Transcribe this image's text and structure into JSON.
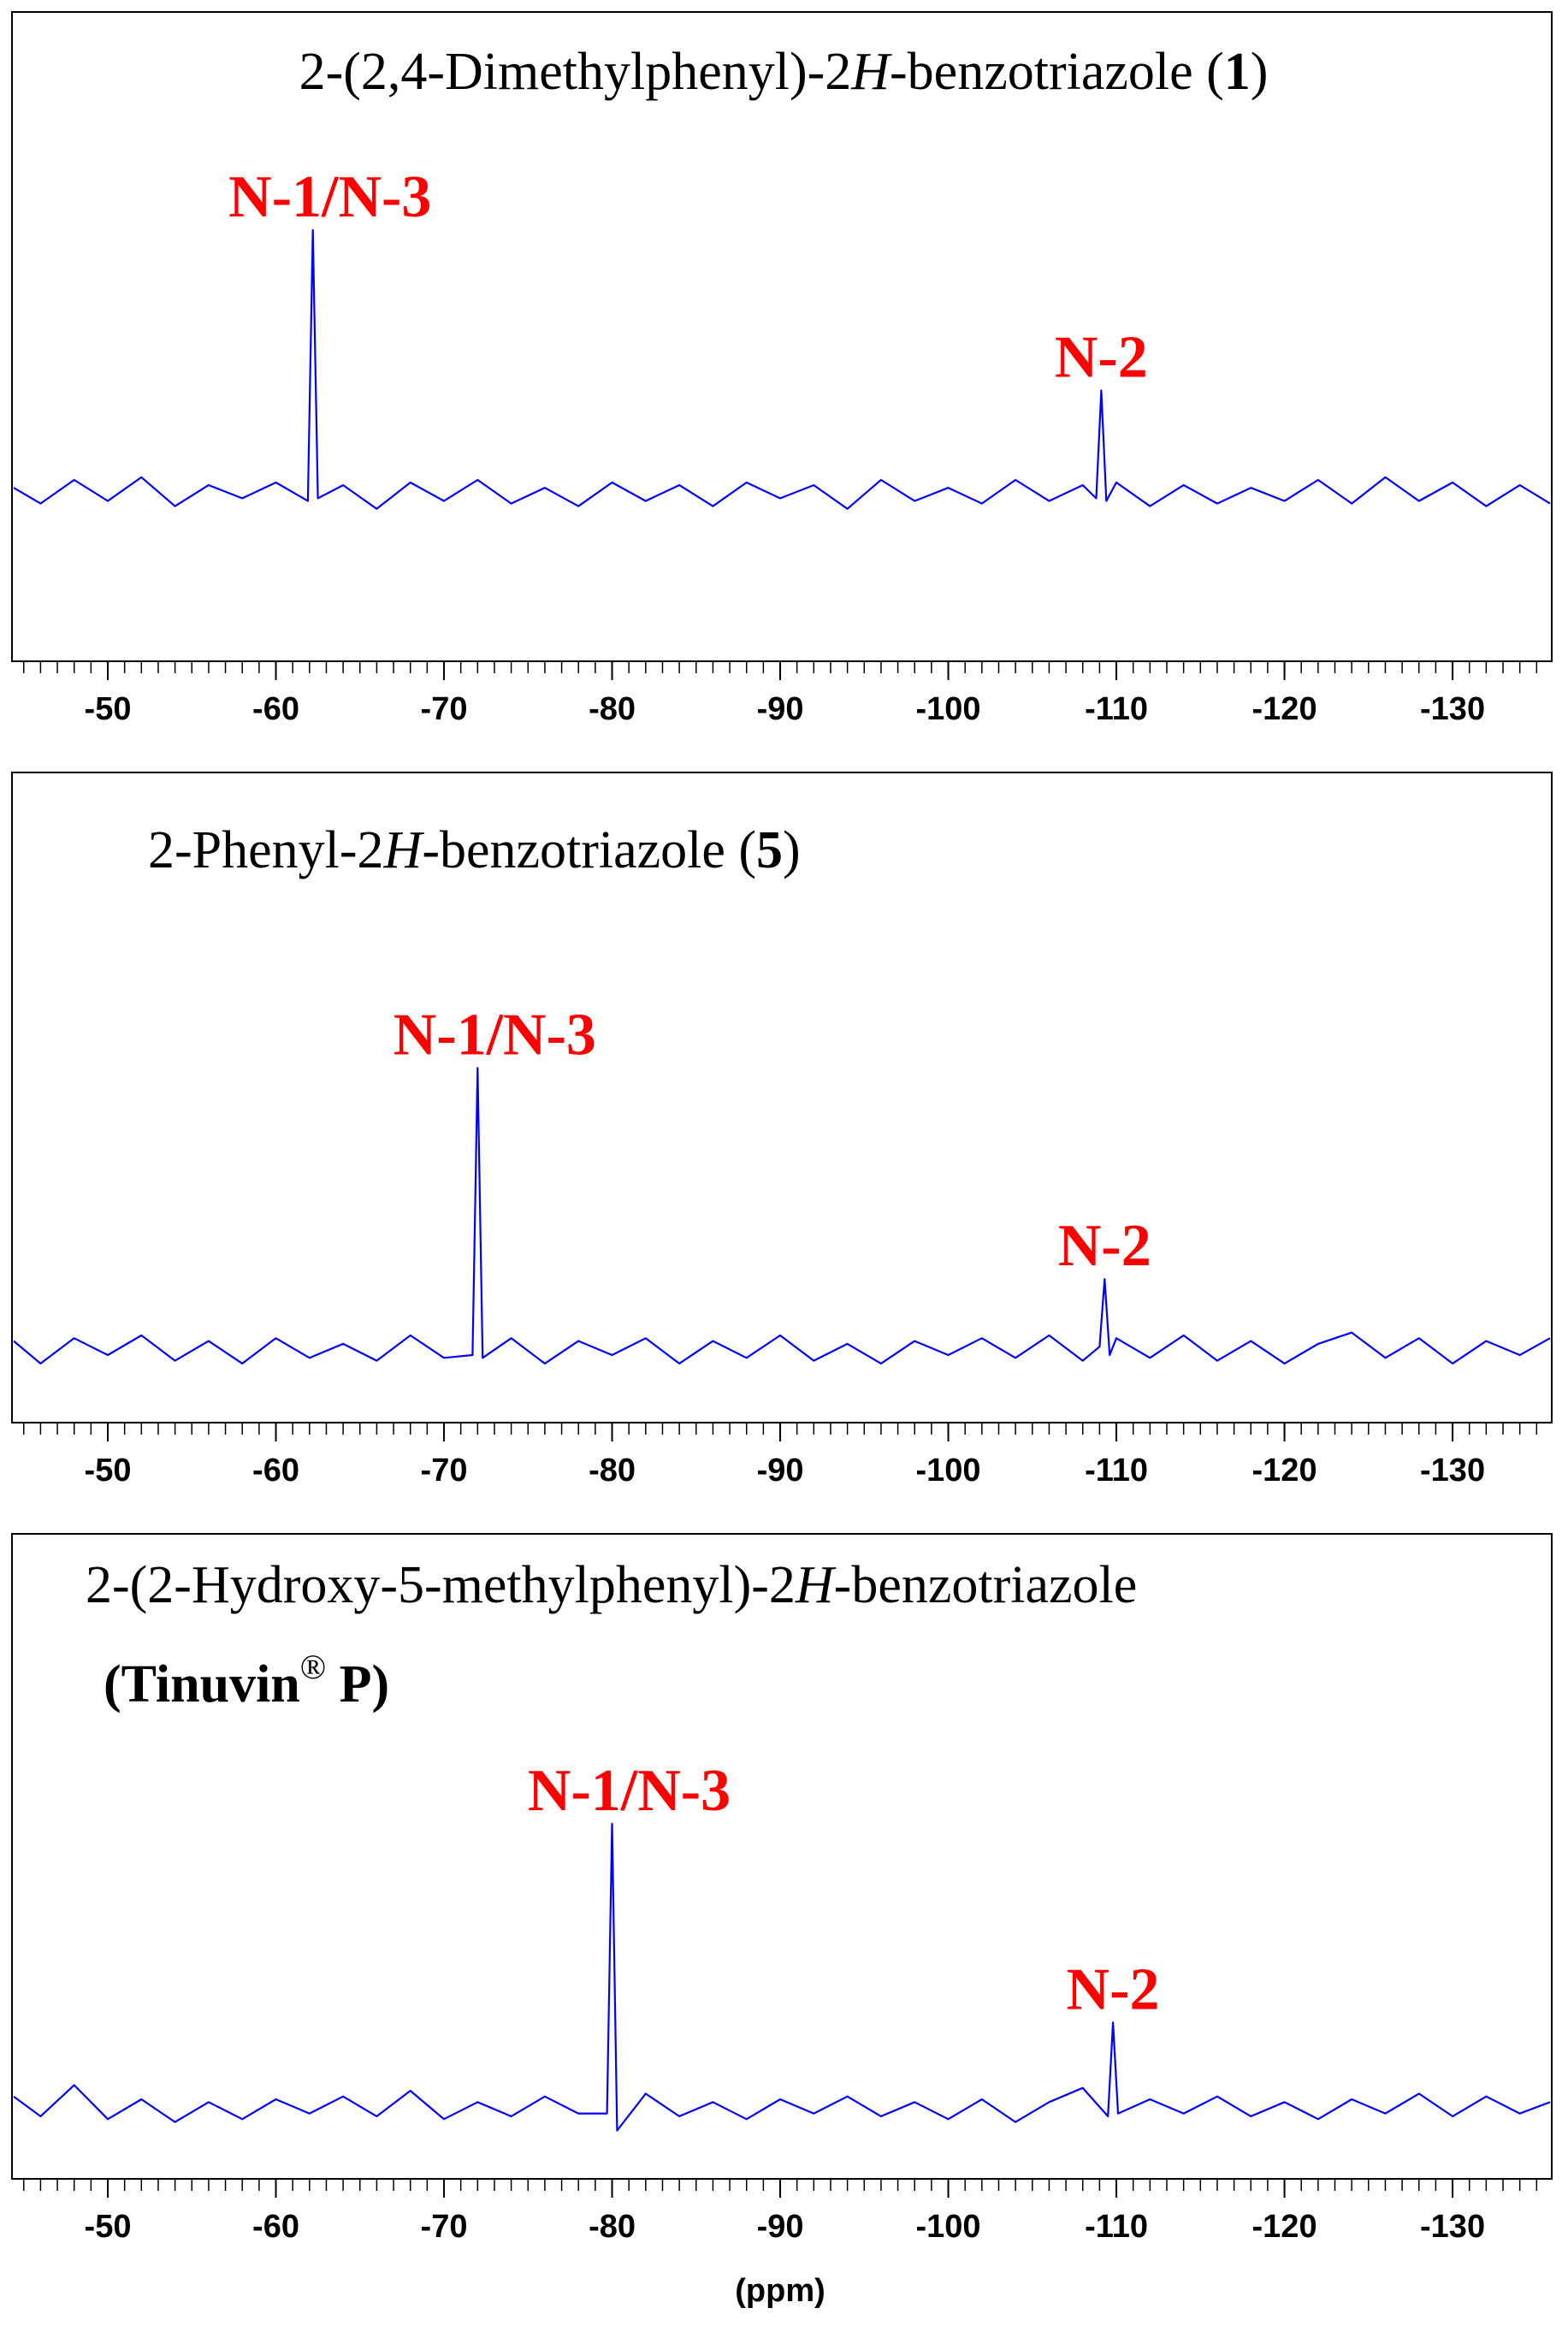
{
  "chart_data": [
    {
      "type": "line",
      "title": [
        {
          "text": "2-(2,4-Dimethylphenyl)-2"
        },
        {
          "text": "H",
          "italic": true
        },
        {
          "text": "-benzotriazole ("
        },
        {
          "text": "1",
          "bold": true
        },
        {
          "text": ")"
        }
      ],
      "x": [
        -44.4,
        -46,
        -48,
        -50,
        -52,
        -54,
        -56,
        -58,
        -60,
        -61.9,
        -62.2,
        -62.5,
        -64,
        -66,
        -68,
        -70,
        -72,
        -74,
        -76,
        -78,
        -80,
        -82,
        -84,
        -86,
        -88,
        -90,
        -92,
        -94,
        -96,
        -98,
        -100,
        -102,
        -104,
        -106,
        -108,
        -108.8,
        -109.1,
        -109.4,
        -110,
        -112,
        -114,
        -116,
        -118,
        -120,
        -122,
        -124,
        -126,
        -128,
        -130,
        -132,
        -134,
        -135.8
      ],
      "values": [
        0.2,
        -0.4,
        0.5,
        -0.3,
        0.6,
        -0.5,
        0.3,
        -0.2,
        0.4,
        -0.3,
        10,
        -0.2,
        0.3,
        -0.6,
        0.4,
        -0.3,
        0.5,
        -0.4,
        0.2,
        -0.5,
        0.4,
        -0.3,
        0.3,
        -0.5,
        0.4,
        -0.2,
        0.3,
        -0.6,
        0.5,
        -0.3,
        0.2,
        -0.4,
        0.5,
        -0.3,
        0.3,
        -0.2,
        3.9,
        -0.3,
        0.4,
        -0.5,
        0.3,
        -0.4,
        0.2,
        -0.3,
        0.5,
        -0.4,
        0.6,
        -0.3,
        0.4,
        -0.5,
        0.3,
        -0.4
      ],
      "color": "#0000ff",
      "annotations": [
        {
          "text": "N-1/N-3",
          "x": -62.2,
          "y": 10
        },
        {
          "text": "N-2",
          "x": -109.1,
          "y": 3.9
        }
      ],
      "annotation_color": "#ff0000",
      "xlim": [
        -44.3,
        -135.9
      ],
      "ylim": [
        -6.4,
        18.3
      ],
      "xticks": [
        -50,
        -60,
        -70,
        -80,
        -90,
        -100,
        -110,
        -120,
        -130
      ],
      "xminor_step": 1
    },
    {
      "type": "line",
      "title": [
        {
          "text": "2-Phenyl-2"
        },
        {
          "text": "H",
          "italic": true
        },
        {
          "text": "-benzotriazole ("
        },
        {
          "text": "5",
          "bold": true
        },
        {
          "text": ")"
        }
      ],
      "x": [
        -44.4,
        -46,
        -48,
        -50,
        -52,
        -54,
        -56,
        -58,
        -60,
        -62,
        -64,
        -66,
        -68,
        -70,
        -71.7,
        -72,
        -72.3,
        -74,
        -76,
        -78,
        -80,
        -82,
        -84,
        -86,
        -88,
        -90,
        -92,
        -94,
        -96,
        -98,
        -100,
        -102,
        -104,
        -106,
        -108,
        -109,
        -109.3,
        -109.6,
        -110,
        -112,
        -114,
        -116,
        -118,
        -120,
        -122,
        -124,
        -126,
        -128,
        -130,
        -132,
        -134,
        -135.8
      ],
      "values": [
        0.3,
        -0.5,
        0.4,
        -0.2,
        0.5,
        -0.4,
        0.3,
        -0.5,
        0.4,
        -0.3,
        0.2,
        -0.4,
        0.5,
        -0.3,
        -0.2,
        10,
        -0.3,
        0.4,
        -0.5,
        0.3,
        -0.2,
        0.4,
        -0.5,
        0.3,
        -0.3,
        0.5,
        -0.4,
        0.2,
        -0.5,
        0.3,
        -0.2,
        0.4,
        -0.3,
        0.5,
        -0.4,
        0.1,
        2.5,
        -0.2,
        0.4,
        -0.3,
        0.5,
        -0.4,
        0.3,
        -0.5,
        0.2,
        0.6,
        -0.3,
        0.4,
        -0.5,
        0.3,
        -0.2,
        0.4
      ],
      "color": "#0000ff",
      "annotations": [
        {
          "text": "N-1/N-3",
          "x": -72,
          "y": 10
        },
        {
          "text": "N-2",
          "x": -109.3,
          "y": 2.5
        }
      ],
      "annotation_color": "#ff0000",
      "xlim": [
        -44.3,
        -135.9
      ],
      "ylim": [
        -2.6,
        20.5
      ],
      "xticks": [
        -50,
        -60,
        -70,
        -80,
        -90,
        -100,
        -110,
        -120,
        -130
      ],
      "xminor_step": 1
    },
    {
      "type": "line",
      "title": [
        [
          {
            "text": "2-(2-Hydroxy-5-methylphenyl)-2"
          },
          {
            "text": "H",
            "italic": true
          },
          {
            "text": "-benzotriazole"
          }
        ],
        [
          {
            "text": "(Tinuvin",
            "bold": true
          },
          {
            "text": "®",
            "sup": true
          },
          {
            "text": " P)",
            "bold": true
          }
        ]
      ],
      "x": [
        -44.4,
        -46,
        -48,
        -50,
        -52,
        -54,
        -56,
        -58,
        -60,
        -62,
        -64,
        -66,
        -68,
        -70,
        -72,
        -74,
        -76,
        -78,
        -79.7,
        -80,
        -80.3,
        -82,
        -84,
        -86,
        -88,
        -90,
        -92,
        -94,
        -96,
        -98,
        -100,
        -102,
        -104,
        -106,
        -108,
        -109.5,
        -109.8,
        -110.1,
        -112,
        -114,
        -116,
        -118,
        -120,
        -122,
        -124,
        -126,
        -128,
        -130,
        -132,
        -134,
        -135.8
      ],
      "values": [
        0.4,
        -0.3,
        0.8,
        -0.4,
        0.3,
        -0.5,
        0.2,
        -0.4,
        0.3,
        -0.2,
        0.4,
        -0.3,
        0.6,
        -0.4,
        0.2,
        -0.3,
        0.4,
        -0.2,
        -0.2,
        10,
        -0.8,
        0.5,
        -0.3,
        0.2,
        -0.4,
        0.3,
        -0.2,
        0.4,
        -0.3,
        0.2,
        -0.4,
        0.3,
        -0.5,
        0.2,
        0.7,
        -0.3,
        3.0,
        -0.2,
        0.3,
        -0.2,
        0.4,
        -0.3,
        0.2,
        -0.4,
        0.3,
        -0.2,
        0.5,
        -0.3,
        0.4,
        -0.2,
        0.2
      ],
      "color": "#0000ff",
      "annotations": [
        {
          "text": "N-1/N-3",
          "x": -80,
          "y": 10
        },
        {
          "text": "N-2",
          "x": -109.8,
          "y": 3.0
        }
      ],
      "annotation_color": "#ff0000",
      "xlabel": "(ppm)",
      "xlim": [
        -44.3,
        -135.9
      ],
      "ylim": [
        -2.5,
        20.2
      ],
      "xticks": [
        -50,
        -60,
        -70,
        -80,
        -90,
        -100,
        -110,
        -120,
        -130
      ],
      "xminor_step": 1
    }
  ]
}
